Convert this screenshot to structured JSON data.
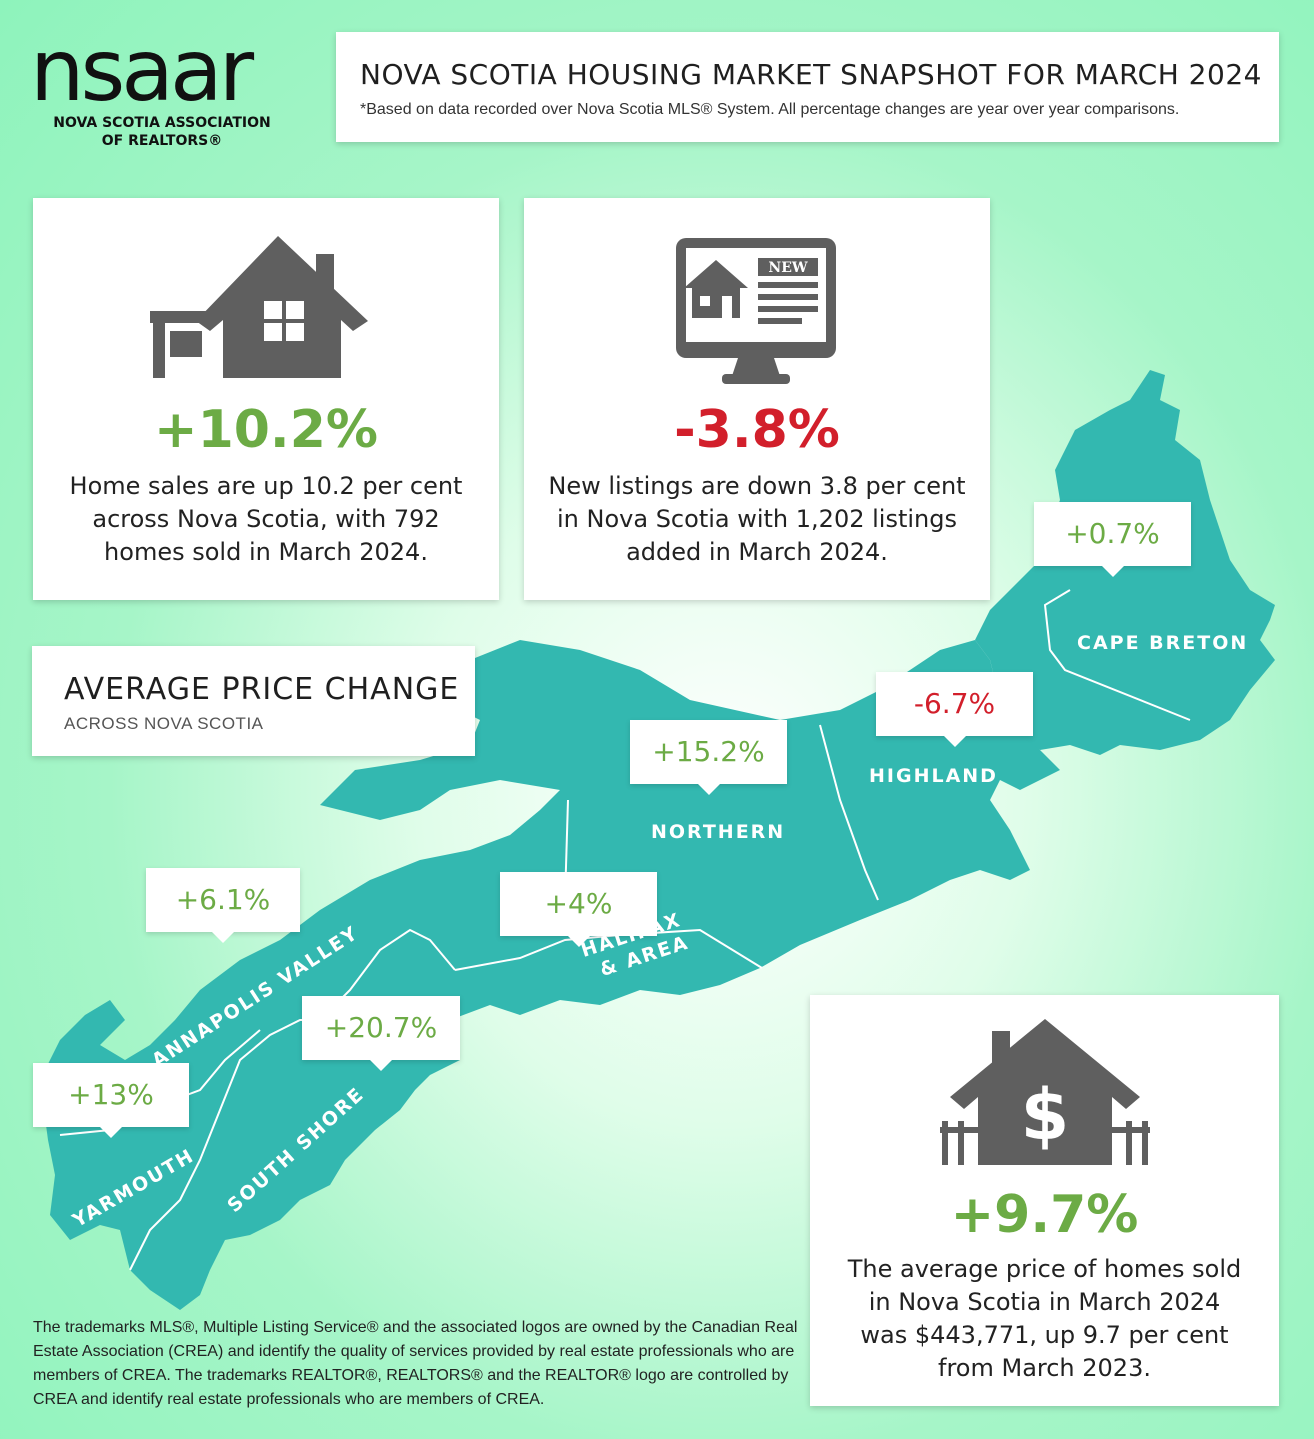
{
  "logo": {
    "wordmark": "nsaar",
    "line1": "NOVA SCOTIA ASSOCIATION",
    "line2": "OF REALTORS®"
  },
  "header": {
    "title": "NOVA SCOTIA HOUSING MARKET SNAPSHOT FOR MARCH 2024",
    "subtitle": "*Based on data recorded over Nova Scotia MLS® System. All percentage changes are year over year comparisons."
  },
  "sales_card": {
    "icon": "house-with-sign-icon",
    "stat": "+10.2%",
    "lines": [
      "Home sales are up 10.2 per cent",
      "across Nova Scotia, with 792",
      "homes sold in March 2024."
    ]
  },
  "listings_card": {
    "icon": "monitor-new-listing-icon",
    "badge": "NEW",
    "stat": "-3.8%",
    "lines": [
      "New listings are down 3.8 per cent",
      "in Nova Scotia with 1,202 listings",
      "added in March 2024."
    ]
  },
  "price_heading": {
    "title": "AVERAGE PRICE CHANGE",
    "subtitle": "ACROSS NOVA SCOTIA"
  },
  "regions": {
    "cape_breton": {
      "name": "CAPE BRETON",
      "change": "+0.7%"
    },
    "highland": {
      "name": "HIGHLAND",
      "change": "-6.7%"
    },
    "northern": {
      "name": "NORTHERN",
      "change": "+15.2%"
    },
    "halifax_line1": "HALIFAX",
    "halifax_line2": "& AREA",
    "halifax_change": "+4%",
    "annapolis": {
      "name": "ANNAPOLIS VALLEY",
      "change": "+6.1%"
    },
    "south_shore": {
      "name": "SOUTH SHORE",
      "change": "+20.7%"
    },
    "yarmouth": {
      "name": "YARMOUTH",
      "change": "+13%"
    }
  },
  "avg_price_card": {
    "icon": "house-dollar-icon",
    "stat": "+9.7%",
    "lines": [
      "The average price of homes sold",
      "in Nova Scotia in March 2024",
      "was $443,771, up 9.7 per cent",
      "from March 2023."
    ]
  },
  "footer": "The trademarks MLS®, Multiple Listing Service® and the associated logos are owned by the Canadian Real Estate Association (CREA) and identify the quality of services provided by real estate professionals who are members of CREA. The trademarks REALTOR®, REALTORS® and the REALTOR® logo are controlled by CREA and identify real estate professionals who are members of CREA.",
  "colors": {
    "map": "#33b8b0",
    "positive": "#6cab45",
    "negative": "#d21f2b",
    "icon": "#5f5f5f"
  }
}
